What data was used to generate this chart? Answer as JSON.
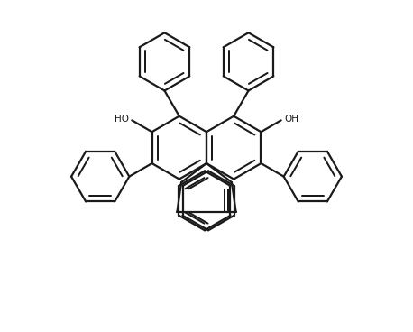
{
  "background_color": "#ffffff",
  "line_color": "#1a1a1a",
  "line_width": 1.6,
  "text_color": "#1a1a1a",
  "fig_width": 4.58,
  "fig_height": 3.68,
  "dpi": 100
}
